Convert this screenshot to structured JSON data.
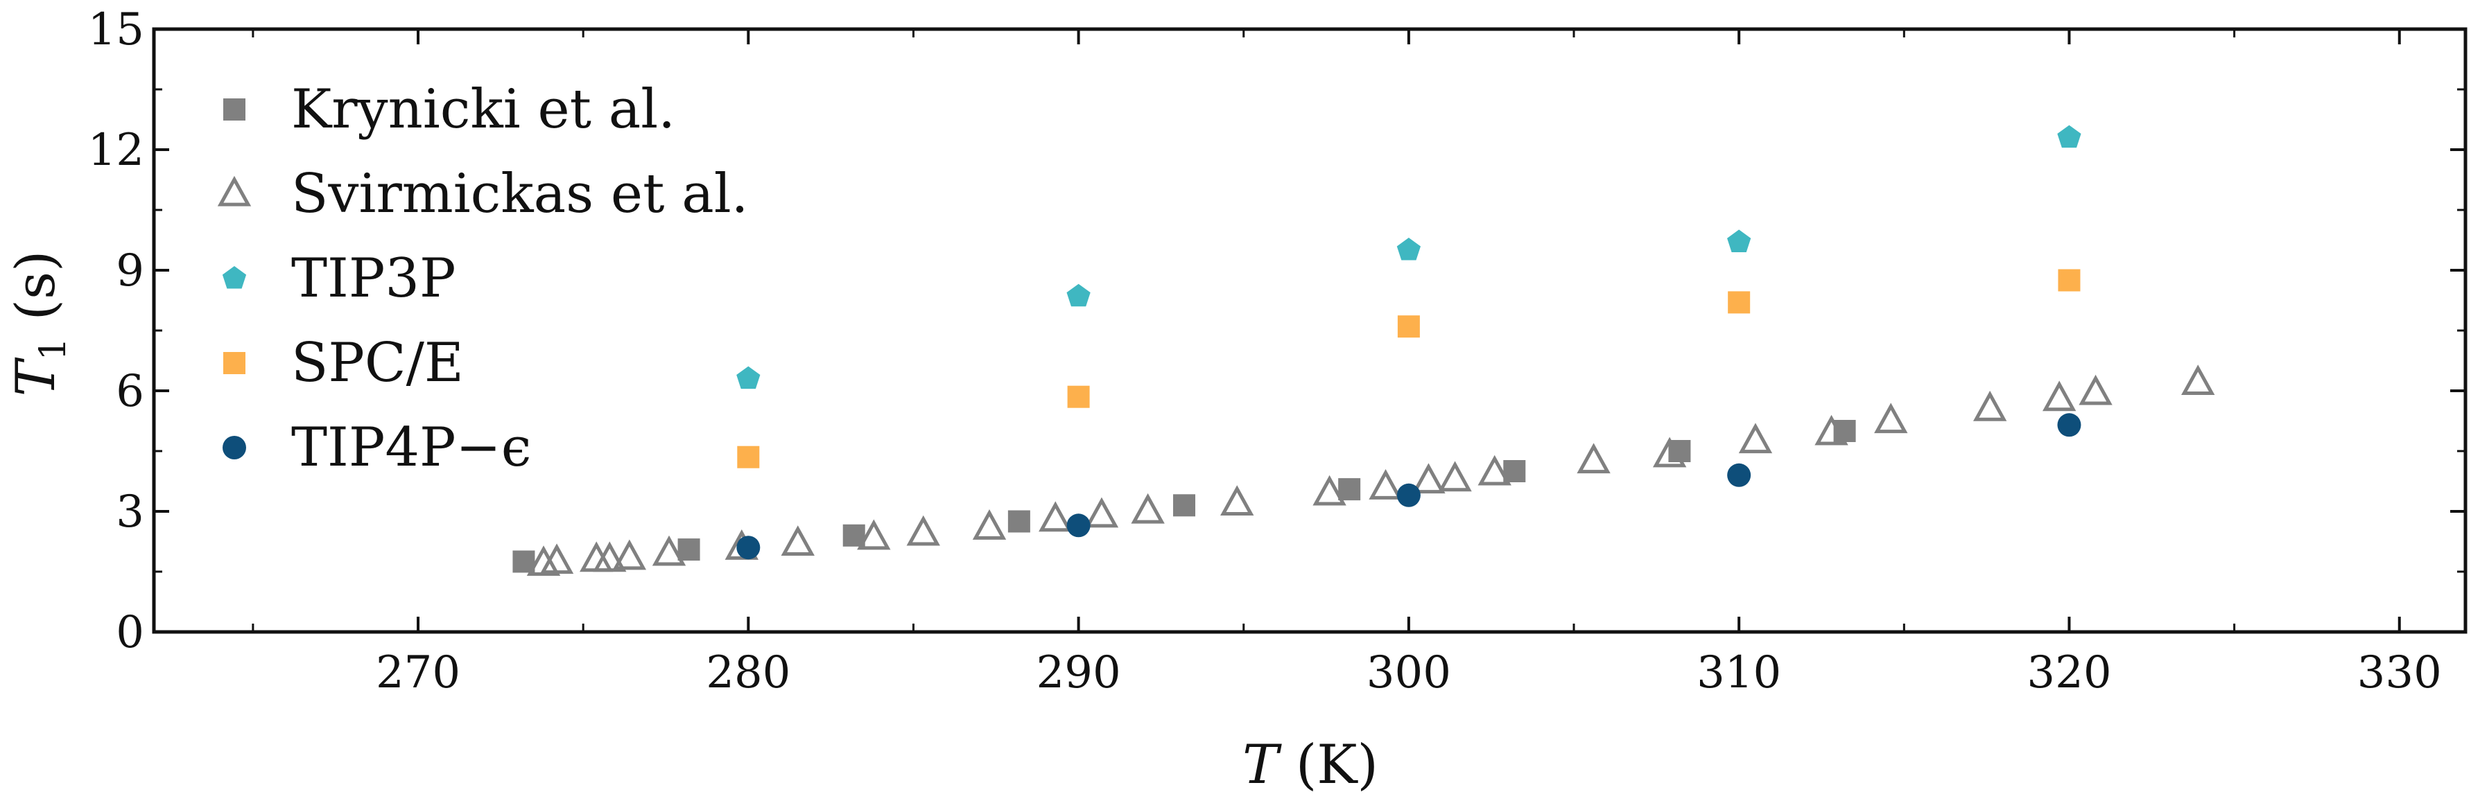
{
  "chart_data": {
    "type": "scatter",
    "xlabel": {
      "symbol": "T",
      "unit": " (K)"
    },
    "ylabel": {
      "symbol": "T",
      "subscript": "1",
      "unit": " (s)"
    },
    "xlim": [
      262,
      332
    ],
    "ylim": [
      0,
      15
    ],
    "xticks": [
      270,
      280,
      290,
      300,
      310,
      320,
      330
    ],
    "yticks": [
      0,
      3,
      6,
      9,
      12,
      15
    ],
    "x_minor_step": 5,
    "y_minor_step": 1.5,
    "grid": false,
    "legend_position": "top-left",
    "series": [
      {
        "name": "Krynicki et al.",
        "marker": "square-filled",
        "color": "#808080",
        "points": [
          [
            273.2,
            1.75
          ],
          [
            278.2,
            2.05
          ],
          [
            283.2,
            2.4
          ],
          [
            288.2,
            2.75
          ],
          [
            293.2,
            3.15
          ],
          [
            298.2,
            3.55
          ],
          [
            303.2,
            4.0
          ],
          [
            308.2,
            4.5
          ],
          [
            313.2,
            5.0
          ]
        ]
      },
      {
        "name": "Svirmickas et al.",
        "marker": "triangle-open",
        "color": "#808080",
        "points": [
          [
            273.8,
            1.7
          ],
          [
            274.2,
            1.75
          ],
          [
            275.4,
            1.8
          ],
          [
            275.8,
            1.8
          ],
          [
            276.4,
            1.85
          ],
          [
            277.6,
            1.95
          ],
          [
            279.8,
            2.1
          ],
          [
            281.5,
            2.2
          ],
          [
            283.8,
            2.35
          ],
          [
            285.3,
            2.45
          ],
          [
            287.3,
            2.6
          ],
          [
            289.3,
            2.8
          ],
          [
            290.7,
            2.9
          ],
          [
            292.1,
            3.0
          ],
          [
            294.8,
            3.2
          ],
          [
            297.6,
            3.45
          ],
          [
            299.3,
            3.6
          ],
          [
            300.6,
            3.75
          ],
          [
            301.4,
            3.8
          ],
          [
            302.6,
            3.95
          ],
          [
            305.6,
            4.25
          ],
          [
            307.9,
            4.4
          ],
          [
            310.5,
            4.75
          ],
          [
            312.8,
            4.95
          ],
          [
            314.6,
            5.25
          ],
          [
            317.6,
            5.55
          ],
          [
            319.7,
            5.8
          ],
          [
            320.8,
            5.95
          ],
          [
            323.9,
            6.2
          ]
        ]
      },
      {
        "name": "TIP3P",
        "marker": "pentagon-filled",
        "color": "#3fb7c1",
        "points": [
          [
            280,
            6.3
          ],
          [
            290,
            8.35
          ],
          [
            300,
            9.5
          ],
          [
            310,
            9.7
          ],
          [
            320,
            12.3
          ]
        ]
      },
      {
        "name": "SPC/E",
        "marker": "square-filled",
        "color": "#fdb04c",
        "points": [
          [
            280,
            4.35
          ],
          [
            290,
            5.85
          ],
          [
            300,
            7.6
          ],
          [
            310,
            8.2
          ],
          [
            320,
            8.75
          ]
        ]
      },
      {
        "name": "TIP4P−ϵ",
        "marker": "circle-filled",
        "color": "#0e4e7a",
        "points": [
          [
            280,
            2.1
          ],
          [
            290,
            2.65
          ],
          [
            300,
            3.4
          ],
          [
            310,
            3.9
          ],
          [
            320,
            5.15
          ]
        ]
      }
    ]
  }
}
